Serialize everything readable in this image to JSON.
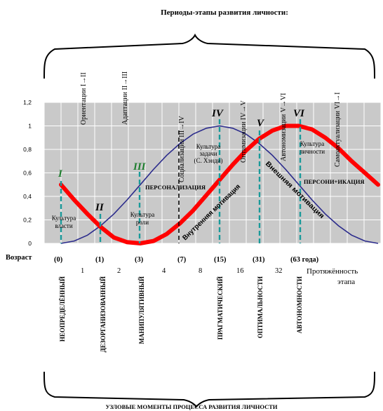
{
  "title": "Периоды-этапы развития личности:",
  "bottom_caption": "УЗЛОВЫЕ МОМЕНТЫ ПРОЦЕССА РАЗВИТИЯ ЛИЧНОСТИ",
  "y_ticks": [
    "1,2",
    "1",
    "0,8",
    "0,6",
    "0,4",
    "0,2",
    "0"
  ],
  "y_tick_values": [
    1.2,
    1.0,
    0.8,
    0.6,
    0.4,
    0.2,
    0.0
  ],
  "vertical_period_labels": [
    "Ориентации I→II",
    "Адаптации II→III",
    "Социализации III→IV",
    "Оптимизации IV→V",
    "Автономизации V→VI",
    "Самоактуализации VI→I"
  ],
  "stage_numerals": [
    "I",
    "II",
    "III",
    "IV",
    "V",
    "VI"
  ],
  "culture_labels": [
    "Культура власти",
    "Культура роли",
    "Культура задачи (С. Хэнди)",
    "Культура личности"
  ],
  "personalization_labels": [
    "ПЕРСОНАЛИЗАЦИЯ",
    "ПЕРСОНИ+ИКАЦИЯ"
  ],
  "diagonal_labels": [
    "Внутренняя мотивация",
    "Внешняя мотивация"
  ],
  "age_axis": {
    "label": "Возраст",
    "ages": [
      "(0)",
      "(1)",
      "(3)",
      "(7)",
      "(15)",
      "(31)",
      "(63 года)"
    ],
    "durations": [
      "1",
      "2",
      "4",
      "8",
      "16",
      "32"
    ],
    "duration_label": "Протяжённость этапа"
  },
  "node_moments": [
    "НЕОПРЕДЕЛЁННЫЙ",
    "ДЕЗОРГАНИЗОВАННЫЙ",
    "МАНИПУЛЯТИВНЫЙ",
    "ПРАГМАТИЧЕСКИЙ",
    "ОПТИМАЛЬНОСТИ",
    "АВТОНОМНОСТИ"
  ],
  "chart_data": {
    "type": "line",
    "ylim": [
      0,
      1.2
    ],
    "grid": true,
    "series": [
      {
        "color": "#2b2b8c",
        "x": [
          0,
          0.5,
          1,
          1.5,
          2,
          2.5,
          3,
          3.5,
          4,
          4.5,
          5,
          5.5,
          6,
          6.5,
          7,
          7.5,
          8,
          8.5,
          9,
          9.5,
          10,
          10.5,
          11,
          11.5,
          12
        ],
        "values": [
          0,
          0.02,
          0.07,
          0.15,
          0.25,
          0.37,
          0.5,
          0.63,
          0.75,
          0.85,
          0.93,
          0.98,
          1.0,
          0.98,
          0.93,
          0.85,
          0.75,
          0.63,
          0.5,
          0.37,
          0.25,
          0.15,
          0.07,
          0.02,
          0
        ]
      },
      {
        "color": "#ff0000",
        "x": [
          0,
          0.5,
          1,
          1.5,
          2,
          2.5,
          3,
          3.5,
          4,
          4.5,
          5,
          5.5,
          6,
          6.5,
          7,
          7.5,
          8,
          8.5,
          9,
          9.5,
          10,
          10.5,
          11,
          11.5,
          12
        ],
        "values": [
          0.5,
          0.37,
          0.25,
          0.14,
          0.05,
          0.01,
          0,
          0.02,
          0.08,
          0.17,
          0.28,
          0.41,
          0.54,
          0.67,
          0.79,
          0.89,
          0.96,
          1.0,
          1.0,
          0.97,
          0.9,
          0.81,
          0.7,
          0.6,
          0.5
        ]
      }
    ]
  },
  "colors": {
    "plot_bg": "#c9c9c9",
    "grid": "#ffffff",
    "blue_curve": "#2b2b8c",
    "red_curve": "#ff0000",
    "dashed_marker": "#1a9a9a",
    "numeral_green": "#1e7d2e"
  }
}
